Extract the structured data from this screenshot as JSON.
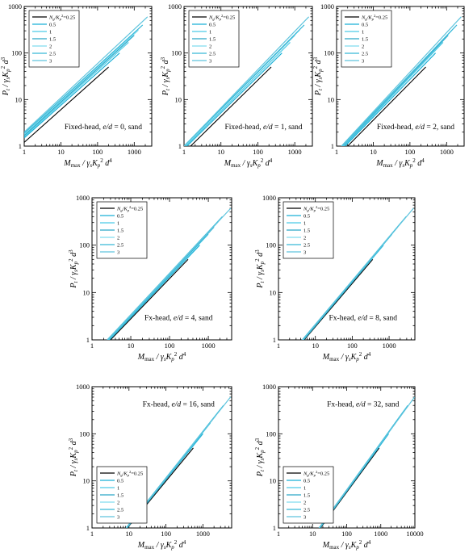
{
  "chart_data": [
    {
      "type": "line",
      "annotation": "Fixed-head, e/d = 0, sand",
      "annotation_parts": [
        "Fixed-head, ",
        "e/d",
        " = 0, sand"
      ],
      "xlabel": "M_max / γs Kp² d⁴",
      "ylabel": "P_t / γs Kp² d³",
      "xscale": "log",
      "yscale": "log",
      "xlim": [
        1,
        3000
      ],
      "ylim": [
        1,
        1000
      ],
      "xticks": [
        1,
        10,
        100,
        1000
      ],
      "yticks": [
        1,
        10,
        100,
        1000
      ],
      "legend_loc": "top-left",
      "series": [
        {
          "name": "0.25",
          "x": [
            1,
            200
          ],
          "y": [
            1.2,
            50
          ]
        },
        {
          "name": "0.5",
          "x": [
            1,
            400
          ],
          "y": [
            1.5,
            100
          ]
        },
        {
          "name": "1",
          "x": [
            1,
            700
          ],
          "y": [
            1.6,
            170
          ]
        },
        {
          "name": "1.5",
          "x": [
            1,
            1000
          ],
          "y": [
            1.7,
            240
          ]
        },
        {
          "name": "2",
          "x": [
            1,
            1300
          ],
          "y": [
            1.8,
            310
          ]
        },
        {
          "name": "2.5",
          "x": [
            1,
            1700
          ],
          "y": [
            1.9,
            400
          ]
        },
        {
          "name": "3",
          "x": [
            1,
            2300
          ],
          "y": [
            2.0,
            600
          ]
        }
      ]
    },
    {
      "type": "line",
      "annotation": "Fixed-head, e/d = 1, sand",
      "annotation_parts": [
        "Fixed-head, ",
        "e/d",
        " = 1, sand"
      ],
      "xlabel": "M_max / γs Kp² d⁴",
      "ylabel": "P_t / γs Kp² d³",
      "xscale": "log",
      "yscale": "log",
      "xlim": [
        1,
        3000
      ],
      "ylim": [
        1,
        1000
      ],
      "xticks": [
        1,
        10,
        100,
        1000
      ],
      "yticks": [
        1,
        10,
        100,
        1000
      ],
      "legend_loc": "top-left",
      "series": [
        {
          "name": "0.25",
          "x": [
            1.5,
            230
          ],
          "y": [
            1,
            50
          ]
        },
        {
          "name": "0.5",
          "x": [
            1.2,
            450
          ],
          "y": [
            1,
            100
          ]
        },
        {
          "name": "1",
          "x": [
            1.1,
            750
          ],
          "y": [
            1,
            170
          ]
        },
        {
          "name": "1.5",
          "x": [
            1,
            1000
          ],
          "y": [
            1,
            240
          ]
        },
        {
          "name": "2",
          "x": [
            1,
            1350
          ],
          "y": [
            1,
            310
          ]
        },
        {
          "name": "2.5",
          "x": [
            1,
            1800
          ],
          "y": [
            1,
            400
          ]
        },
        {
          "name": "3",
          "x": [
            1,
            2400
          ],
          "y": [
            1,
            600
          ]
        }
      ]
    },
    {
      "type": "line",
      "annotation": "Fixed-head, e/d = 2, sand",
      "annotation_parts": [
        "Fixed-head, ",
        "e/d",
        " = 2, sand"
      ],
      "xlabel": "M_max / γs Kp² d⁴",
      "ylabel": "P_t / γs Kp² d³",
      "xscale": "log",
      "yscale": "log",
      "xlim": [
        1,
        3000
      ],
      "ylim": [
        1,
        1000
      ],
      "xticks": [
        1,
        10,
        100,
        1000
      ],
      "yticks": [
        1,
        10,
        100,
        1000
      ],
      "legend_loc": "top-left",
      "series": [
        {
          "name": "0.25",
          "x": [
            2,
            270
          ],
          "y": [
            1,
            50
          ]
        },
        {
          "name": "0.5",
          "x": [
            1.7,
            500
          ],
          "y": [
            1,
            100
          ]
        },
        {
          "name": "1",
          "x": [
            1.6,
            800
          ],
          "y": [
            1,
            170
          ]
        },
        {
          "name": "1.5",
          "x": [
            1.5,
            1100
          ],
          "y": [
            1,
            240
          ]
        },
        {
          "name": "2",
          "x": [
            1.45,
            1400
          ],
          "y": [
            1,
            310
          ]
        },
        {
          "name": "2.5",
          "x": [
            1.4,
            1900
          ],
          "y": [
            1,
            400
          ]
        },
        {
          "name": "3",
          "x": [
            1.35,
            2500
          ],
          "y": [
            1,
            600
          ]
        }
      ]
    },
    {
      "type": "line",
      "annotation": "Fx-head, e/d = 4, sand",
      "annotation_parts": [
        "Fx-head, ",
        "e/d",
        " = 4, sand"
      ],
      "xlabel": "M_max / γs Kp² d⁴",
      "ylabel": "P_t / γs Kp² d³",
      "xscale": "log",
      "yscale": "log",
      "xlim": [
        1,
        4000
      ],
      "ylim": [
        1,
        1000
      ],
      "xticks": [
        1,
        10,
        100,
        1000
      ],
      "yticks": [
        1,
        10,
        100,
        1000
      ],
      "legend_loc": "top-left",
      "series": [
        {
          "name": "0.25",
          "x": [
            3,
            300
          ],
          "y": [
            1,
            50
          ]
        },
        {
          "name": "0.5",
          "x": [
            2.8,
            600
          ],
          "y": [
            1,
            100
          ]
        },
        {
          "name": "1",
          "x": [
            2.7,
            1000
          ],
          "y": [
            1,
            170
          ]
        },
        {
          "name": "1.5",
          "x": [
            2.6,
            1400
          ],
          "y": [
            1,
            240
          ]
        },
        {
          "name": "2",
          "x": [
            2.55,
            1800
          ],
          "y": [
            1,
            310
          ]
        },
        {
          "name": "2.5",
          "x": [
            2.5,
            2300
          ],
          "y": [
            1,
            400
          ]
        },
        {
          "name": "3",
          "x": [
            2.45,
            3800
          ],
          "y": [
            1,
            600
          ]
        }
      ]
    },
    {
      "type": "line",
      "annotation": "Fx-head, e/d = 8, sand",
      "annotation_parts": [
        "Fx-head, ",
        "e/d",
        " = 8, sand"
      ],
      "xlabel": "M_max / γs Kp² d⁴",
      "ylabel": "P_t / γs Kp² d³",
      "xscale": "log",
      "yscale": "log",
      "xlim": [
        1,
        5000
      ],
      "ylim": [
        1,
        1000
      ],
      "xticks": [
        1,
        10,
        100,
        1000
      ],
      "yticks": [
        1,
        10,
        100,
        1000
      ],
      "legend_loc": "top-left",
      "series": [
        {
          "name": "0.25",
          "x": [
            5,
            360
          ],
          "y": [
            1,
            50
          ]
        },
        {
          "name": "0.5",
          "x": [
            4.8,
            700
          ],
          "y": [
            1,
            100
          ]
        },
        {
          "name": "1",
          "x": [
            4.7,
            1200
          ],
          "y": [
            1,
            170
          ]
        },
        {
          "name": "1.5",
          "x": [
            4.6,
            1700
          ],
          "y": [
            1,
            240
          ]
        },
        {
          "name": "2",
          "x": [
            4.5,
            2200
          ],
          "y": [
            1,
            310
          ]
        },
        {
          "name": "2.5",
          "x": [
            4.45,
            2900
          ],
          "y": [
            1,
            400
          ]
        },
        {
          "name": "3",
          "x": [
            4.4,
            4600
          ],
          "y": [
            1,
            600
          ]
        }
      ]
    },
    {
      "type": "line",
      "annotation": "Fx-head, e/d = 16, sand",
      "annotation_parts": [
        "Fx-head, ",
        "e/d",
        " = 16, sand"
      ],
      "xlabel": "M_max / γs Kp² d⁴",
      "ylabel": "P_t / γs Kp² d³",
      "xscale": "log",
      "yscale": "log",
      "xlim": [
        1,
        6000
      ],
      "ylim": [
        1,
        1000
      ],
      "xticks": [
        1,
        10,
        100,
        1000
      ],
      "yticks": [
        1,
        10,
        100,
        1000
      ],
      "legend_loc": "bottom-left",
      "series": [
        {
          "name": "0.25",
          "x": [
            9,
            550
          ],
          "y": [
            1,
            50
          ]
        },
        {
          "name": "0.5",
          "x": [
            8.8,
            1000
          ],
          "y": [
            1,
            100
          ]
        },
        {
          "name": "1",
          "x": [
            8.7,
            1600
          ],
          "y": [
            1,
            170
          ]
        },
        {
          "name": "1.5",
          "x": [
            8.6,
            2200
          ],
          "y": [
            1,
            240
          ]
        },
        {
          "name": "2",
          "x": [
            8.5,
            2800
          ],
          "y": [
            1,
            310
          ]
        },
        {
          "name": "2.5",
          "x": [
            8.4,
            3600
          ],
          "y": [
            1,
            400
          ]
        },
        {
          "name": "3",
          "x": [
            8.3,
            5600
          ],
          "y": [
            1,
            600
          ]
        }
      ]
    },
    {
      "type": "line",
      "annotation": "Fx-head, e/d = 32, sand",
      "annotation_parts": [
        "Fx-head, ",
        "e/d",
        " = 32, sand"
      ],
      "xlabel": "M_max / γs Kp² d⁴",
      "ylabel": "P_t / γs Kp² d³",
      "xscale": "log",
      "yscale": "log",
      "xlim": [
        1,
        10000
      ],
      "ylim": [
        1,
        1000
      ],
      "xticks": [
        1,
        10,
        100,
        1000,
        10000
      ],
      "yticks": [
        1,
        10,
        100,
        1000
      ],
      "legend_loc": "bottom-left",
      "series": [
        {
          "name": "0.25",
          "x": [
            17,
            900
          ],
          "y": [
            1,
            50
          ]
        },
        {
          "name": "0.5",
          "x": [
            16.5,
            1700
          ],
          "y": [
            1,
            100
          ]
        },
        {
          "name": "1",
          "x": [
            16.2,
            2700
          ],
          "y": [
            1,
            170
          ]
        },
        {
          "name": "1.5",
          "x": [
            16,
            3700
          ],
          "y": [
            1,
            240
          ]
        },
        {
          "name": "2",
          "x": [
            15.8,
            4800
          ],
          "y": [
            1,
            310
          ]
        },
        {
          "name": "2.5",
          "x": [
            15.6,
            6200
          ],
          "y": [
            1,
            400
          ]
        },
        {
          "name": "3",
          "x": [
            15.4,
            9800
          ],
          "y": [
            1,
            600
          ]
        }
      ]
    }
  ],
  "legend": {
    "title_prefix": "N",
    "title_sub": "g",
    "title_mid": "/K",
    "title_sub2": "p",
    "title_sup": "2",
    "title_suffix": "=0.25",
    "colors": [
      "#000000",
      "#1ab0d6",
      "#4ccbe6",
      "#2aa7c8",
      "#7fdcef",
      "#37b9d8",
      "#5fc4dd"
    ]
  }
}
